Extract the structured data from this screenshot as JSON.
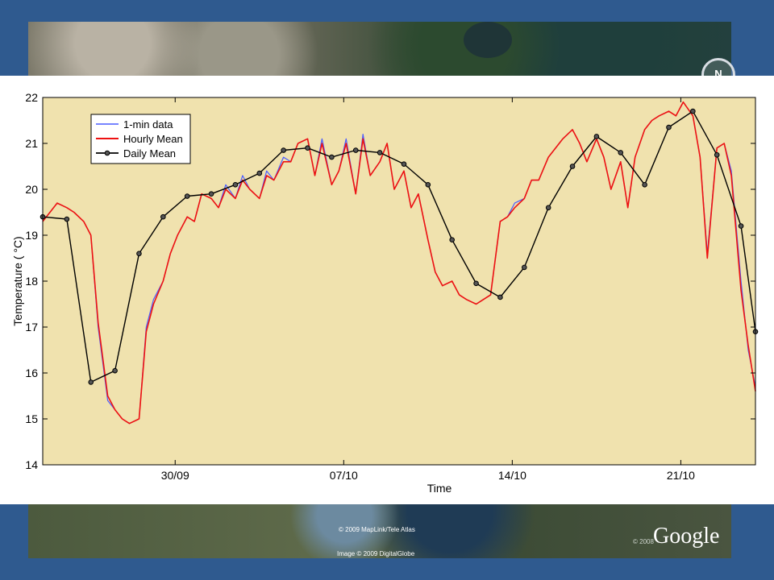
{
  "map": {
    "compass_label": "N",
    "credit_maplink": "© 2009 MapLink/Tele Atlas",
    "credit_image": "Image © 2009 DigitalGlobe",
    "credit_year": "© 2008",
    "logo_text": "Google"
  },
  "chart_data": {
    "type": "line",
    "title": "",
    "xlabel": "Time",
    "ylabel": "Temperature ( °C)",
    "xlim": [
      0,
      29.6
    ],
    "ylim": [
      14,
      22
    ],
    "yticks": [
      14,
      15,
      16,
      17,
      18,
      19,
      20,
      21,
      22
    ],
    "xticks": [
      {
        "pos": 5.5,
        "label": "30/09"
      },
      {
        "pos": 12.5,
        "label": "07/10"
      },
      {
        "pos": 19.5,
        "label": "14/10"
      },
      {
        "pos": 26.5,
        "label": "21/10"
      }
    ],
    "grid": false,
    "legend": {
      "position": "top-left",
      "entries": [
        "1-min data",
        "Hourly Mean",
        "Daily Mean"
      ]
    },
    "colors": {
      "plot_bg": "#f0e2ae",
      "one_min": "#4a5cff",
      "hourly": "#ee1111",
      "daily": "#000000"
    },
    "series": [
      {
        "name": "1-min data",
        "x": [
          0,
          0.3,
          0.6,
          1.0,
          1.3,
          1.7,
          2.0,
          2.3,
          2.7,
          3.0,
          3.3,
          3.6,
          4.0,
          4.3,
          4.6,
          5.0,
          5.3,
          5.6,
          6.0,
          6.3,
          6.6,
          7.0,
          7.3,
          7.6,
          8.0,
          8.3,
          8.6,
          9.0,
          9.3,
          9.6,
          10.0,
          10.3,
          10.6,
          11.0,
          11.3,
          11.6,
          12.0,
          12.3,
          12.6,
          13.0,
          13.3,
          13.6,
          14.0,
          14.3,
          14.6,
          15.0,
          15.3,
          15.6,
          16.0,
          16.3,
          16.6,
          17.0,
          17.3,
          17.6,
          18.0,
          18.3,
          18.6,
          19.0,
          19.3,
          19.6,
          20.0,
          20.3,
          20.6,
          21.0,
          21.3,
          21.6,
          22.0,
          22.3,
          22.6,
          23.0,
          23.3,
          23.6,
          24.0,
          24.3,
          24.6,
          25.0,
          25.3,
          25.6,
          26.0,
          26.3,
          26.6,
          27.0,
          27.3,
          27.6,
          28.0,
          28.3,
          28.6,
          29.0,
          29.3,
          29.6
        ],
        "values": [
          19.3,
          19.5,
          19.7,
          19.6,
          19.5,
          19.3,
          19.0,
          17.0,
          15.4,
          15.2,
          15.0,
          14.9,
          15.0,
          17.0,
          17.6,
          18.0,
          18.6,
          19.0,
          19.4,
          19.3,
          19.9,
          19.8,
          19.6,
          20.1,
          19.8,
          20.3,
          20.0,
          19.8,
          20.4,
          20.2,
          20.7,
          20.6,
          21.0,
          21.1,
          20.3,
          21.1,
          20.1,
          20.4,
          21.1,
          19.9,
          21.2,
          20.3,
          20.6,
          21.0,
          20.0,
          20.4,
          19.6,
          19.9,
          18.9,
          18.2,
          17.9,
          18.0,
          17.7,
          17.6,
          17.5,
          17.6,
          17.7,
          19.3,
          19.4,
          19.7,
          19.8,
          20.2,
          20.2,
          20.7,
          20.9,
          21.1,
          21.3,
          21.0,
          20.6,
          21.1,
          20.7,
          20.0,
          20.6,
          19.6,
          20.7,
          21.3,
          21.5,
          21.6,
          21.7,
          21.6,
          21.9,
          21.6,
          20.7,
          18.6,
          20.9,
          21.0,
          20.4,
          18.0,
          16.5,
          15.7
        ]
      },
      {
        "name": "Hourly Mean",
        "x": [
          0,
          0.3,
          0.6,
          1.0,
          1.3,
          1.7,
          2.0,
          2.3,
          2.7,
          3.0,
          3.3,
          3.6,
          4.0,
          4.3,
          4.6,
          5.0,
          5.3,
          5.6,
          6.0,
          6.3,
          6.6,
          7.0,
          7.3,
          7.6,
          8.0,
          8.3,
          8.6,
          9.0,
          9.3,
          9.6,
          10.0,
          10.3,
          10.6,
          11.0,
          11.3,
          11.6,
          12.0,
          12.3,
          12.6,
          13.0,
          13.3,
          13.6,
          14.0,
          14.3,
          14.6,
          15.0,
          15.3,
          15.6,
          16.0,
          16.3,
          16.6,
          17.0,
          17.3,
          17.6,
          18.0,
          18.3,
          18.6,
          19.0,
          19.3,
          19.6,
          20.0,
          20.3,
          20.6,
          21.0,
          21.3,
          21.6,
          22.0,
          22.3,
          22.6,
          23.0,
          23.3,
          23.6,
          24.0,
          24.3,
          24.6,
          25.0,
          25.3,
          25.6,
          26.0,
          26.3,
          26.6,
          27.0,
          27.3,
          27.6,
          28.0,
          28.3,
          28.6,
          29.0,
          29.3,
          29.6
        ],
        "values": [
          19.3,
          19.5,
          19.7,
          19.6,
          19.5,
          19.3,
          19.0,
          17.1,
          15.5,
          15.2,
          15.0,
          14.9,
          15.0,
          16.9,
          17.5,
          18.0,
          18.6,
          19.0,
          19.4,
          19.3,
          19.9,
          19.8,
          19.6,
          20.0,
          19.8,
          20.2,
          20.0,
          19.8,
          20.3,
          20.2,
          20.6,
          20.6,
          21.0,
          21.1,
          20.3,
          21.0,
          20.1,
          20.4,
          21.0,
          19.9,
          21.1,
          20.3,
          20.6,
          21.0,
          20.0,
          20.4,
          19.6,
          19.9,
          18.9,
          18.2,
          17.9,
          18.0,
          17.7,
          17.6,
          17.5,
          17.6,
          17.7,
          19.3,
          19.4,
          19.6,
          19.8,
          20.2,
          20.2,
          20.7,
          20.9,
          21.1,
          21.3,
          21.0,
          20.6,
          21.1,
          20.7,
          20.0,
          20.6,
          19.6,
          20.7,
          21.3,
          21.5,
          21.6,
          21.7,
          21.6,
          21.9,
          21.6,
          20.7,
          18.5,
          20.9,
          21.0,
          20.3,
          17.8,
          16.6,
          15.6
        ]
      },
      {
        "name": "Daily Mean",
        "x": [
          0,
          1,
          2,
          3,
          4,
          5,
          6,
          7,
          8,
          9,
          10,
          11,
          12,
          13,
          14,
          15,
          16,
          17,
          18,
          19,
          20,
          21,
          22,
          23,
          24,
          25,
          26,
          27,
          28,
          29,
          29.6
        ],
        "values": [
          19.4,
          19.35,
          15.8,
          16.05,
          18.6,
          19.4,
          19.85,
          19.9,
          20.1,
          20.35,
          20.85,
          20.9,
          20.7,
          20.85,
          20.8,
          20.55,
          20.1,
          18.9,
          17.95,
          17.65,
          18.3,
          19.6,
          20.5,
          21.15,
          20.8,
          20.1,
          21.35,
          21.7,
          20.75,
          19.2,
          16.9
        ]
      }
    ]
  }
}
